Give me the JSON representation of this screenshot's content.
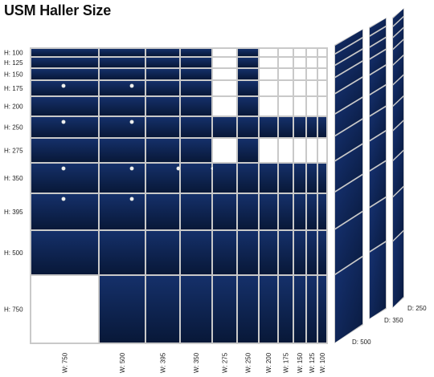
{
  "title": "USM Haller Size",
  "rows": [
    "H: 100",
    "H: 125",
    "H: 150",
    "H: 175",
    "H: 200",
    "H: 250",
    "H: 275",
    "H: 350",
    "H: 395",
    "H: 500",
    "H: 750"
  ],
  "columns": [
    "W: 750",
    "W: 500",
    "W: 395",
    "W: 350",
    "W: 275",
    "W: 250",
    "W: 200",
    "W: 175",
    "W: 150",
    "W: 125",
    "W: 100"
  ],
  "depths": [
    "D: 500",
    "D: 350",
    "D: 250"
  ],
  "colors": {
    "panel": "#0e2350",
    "panel_dark": "#081838",
    "frame": "#c9c9c9",
    "empty": "#ffffff"
  },
  "empty_cells": [
    [
      "H: 100",
      "W: 275"
    ],
    [
      "H: 125",
      "W: 275"
    ],
    [
      "H: 150",
      "W: 275"
    ],
    [
      "H: 175",
      "W: 275"
    ],
    [
      "H: 200",
      "W: 275"
    ],
    [
      "H: 275",
      "W: 275"
    ],
    [
      "H: 100",
      "W: 200"
    ],
    [
      "H: 100",
      "W: 175"
    ],
    [
      "H: 100",
      "W: 150"
    ],
    [
      "H: 100",
      "W: 125"
    ],
    [
      "H: 100",
      "W: 100"
    ],
    [
      "H: 125",
      "W: 200"
    ],
    [
      "H: 125",
      "W: 175"
    ],
    [
      "H: 125",
      "W: 150"
    ],
    [
      "H: 125",
      "W: 125"
    ],
    [
      "H: 125",
      "W: 100"
    ],
    [
      "H: 150",
      "W: 200"
    ],
    [
      "H: 150",
      "W: 175"
    ],
    [
      "H: 150",
      "W: 150"
    ],
    [
      "H: 150",
      "W: 125"
    ],
    [
      "H: 150",
      "W: 100"
    ],
    [
      "H: 175",
      "W: 200"
    ],
    [
      "H: 175",
      "W: 175"
    ],
    [
      "H: 175",
      "W: 150"
    ],
    [
      "H: 175",
      "W: 125"
    ],
    [
      "H: 175",
      "W: 100"
    ],
    [
      "H: 200",
      "W: 200"
    ],
    [
      "H: 200",
      "W: 175"
    ],
    [
      "H: 200",
      "W: 150"
    ],
    [
      "H: 200",
      "W: 125"
    ],
    [
      "H: 200",
      "W: 100"
    ],
    [
      "H: 275",
      "W: 200"
    ],
    [
      "H: 275",
      "W: 175"
    ],
    [
      "H: 275",
      "W: 150"
    ],
    [
      "H: 275",
      "W: 125"
    ],
    [
      "H: 275",
      "W: 100"
    ],
    [
      "H: 750",
      "W: 750"
    ]
  ],
  "knob_cells": [
    [
      "H: 175",
      "W: 750"
    ],
    [
      "H: 175",
      "W: 500"
    ],
    [
      "H: 250",
      "W: 750"
    ],
    [
      "H: 250",
      "W: 500"
    ],
    [
      "H: 350",
      "W: 750"
    ],
    [
      "H: 350",
      "W: 500"
    ],
    [
      "H: 350",
      "W: 395"
    ],
    [
      "H: 350",
      "W: 350"
    ],
    [
      "H: 395",
      "W: 750"
    ],
    [
      "H: 395",
      "W: 500"
    ]
  ]
}
